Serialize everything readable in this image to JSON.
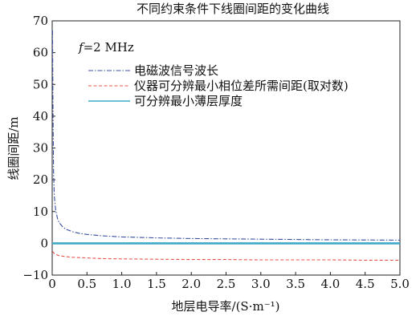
{
  "chart_data": {
    "type": "line",
    "title": "不同约束条件下线圈间距的变化曲线",
    "xlabel": "地层电导率/(S·m⁻¹)",
    "ylabel": "线圈间距/m",
    "xlim": [
      0,
      5.0
    ],
    "ylim": [
      -10,
      70
    ],
    "xticks": [
      "0",
      "0.5",
      "1.0",
      "1.5",
      "2.0",
      "2.5",
      "3.0",
      "3.5",
      "4.0",
      "4.5",
      "5.0"
    ],
    "yticks": [
      "−10",
      "0",
      "10",
      "20",
      "30",
      "40",
      "50",
      "60",
      "70"
    ],
    "annotation": {
      "italic": "f",
      "text": "=2 MHz"
    },
    "legend_position": "top-right",
    "grid": false,
    "series": [
      {
        "name": "电磁波信号波长",
        "color": "#3a4fa0",
        "style": "dashdot",
        "x": [
          0.005,
          0.01,
          0.02,
          0.03,
          0.05,
          0.08,
          0.1,
          0.15,
          0.2,
          0.3,
          0.4,
          0.5,
          0.7,
          1.0,
          1.5,
          2.0,
          2.5,
          3.0,
          3.5,
          4.0,
          4.5,
          5.0
        ],
        "y": [
          67,
          45,
          22,
          15,
          10.5,
          7.5,
          6.5,
          5.2,
          4.4,
          3.6,
          3.1,
          2.8,
          2.4,
          2.0,
          1.7,
          1.5,
          1.4,
          1.3,
          1.2,
          1.1,
          1.05,
          1.0
        ]
      },
      {
        "name": "仪器可分辨最小相位差所需间距(取对数)",
        "color": "#e8524a",
        "style": "dashed",
        "x": [
          0.005,
          0.02,
          0.05,
          0.1,
          0.2,
          0.3,
          0.5,
          0.7,
          1.0,
          1.5,
          2.0,
          2.5,
          3.0,
          3.5,
          4.0,
          4.5,
          5.0
        ],
        "y": [
          -2.5,
          -3.0,
          -3.5,
          -3.9,
          -4.2,
          -4.4,
          -4.6,
          -4.8,
          -4.9,
          -5.0,
          -5.1,
          -5.1,
          -5.2,
          -5.2,
          -5.2,
          -5.3,
          -5.3
        ]
      },
      {
        "name": "可分辨最小薄层厚度",
        "color": "#3fa9c8",
        "style": "solid",
        "x": [
          0,
          5.0
        ],
        "y": [
          0,
          0
        ]
      }
    ]
  }
}
